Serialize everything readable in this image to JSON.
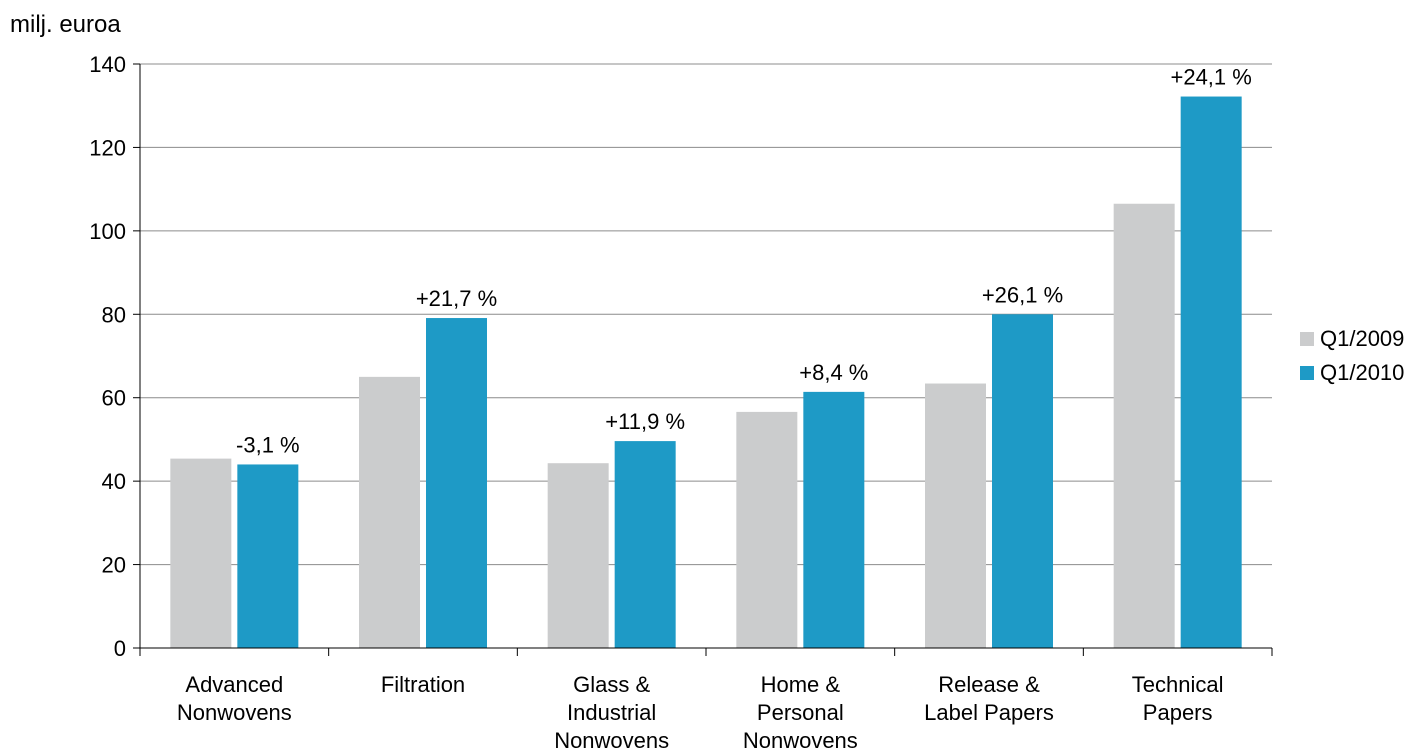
{
  "chart_data": {
    "type": "bar",
    "ylabel": "milj. euroa",
    "ylim": [
      0,
      140
    ],
    "yticks": [
      "0",
      "20",
      "40",
      "60",
      "80",
      "100",
      "120",
      "140"
    ],
    "grid": true,
    "legend_position": "right",
    "categories": [
      [
        "Advanced",
        "Nonwovens"
      ],
      [
        "Filtration"
      ],
      [
        "Glass &",
        "Industrial",
        "Nonwovens"
      ],
      [
        "Home &",
        "Personal",
        "Nonwovens"
      ],
      [
        "Release &",
        "Label Papers"
      ],
      [
        "Technical",
        "Papers"
      ]
    ],
    "series": [
      {
        "name": "Q1/2009",
        "color": "#cbcccd",
        "values": [
          45.4,
          65.0,
          44.3,
          56.6,
          63.4,
          106.5
        ]
      },
      {
        "name": "Q1/2010",
        "color": "#1e9ac6",
        "values": [
          44.0,
          79.1,
          49.6,
          61.4,
          80.0,
          132.2
        ]
      }
    ],
    "annotations": [
      "-3,1 %",
      "+21,7 %",
      "+11,9 %",
      "+8,4 %",
      "+26,1 %",
      "+24,1 %"
    ]
  }
}
